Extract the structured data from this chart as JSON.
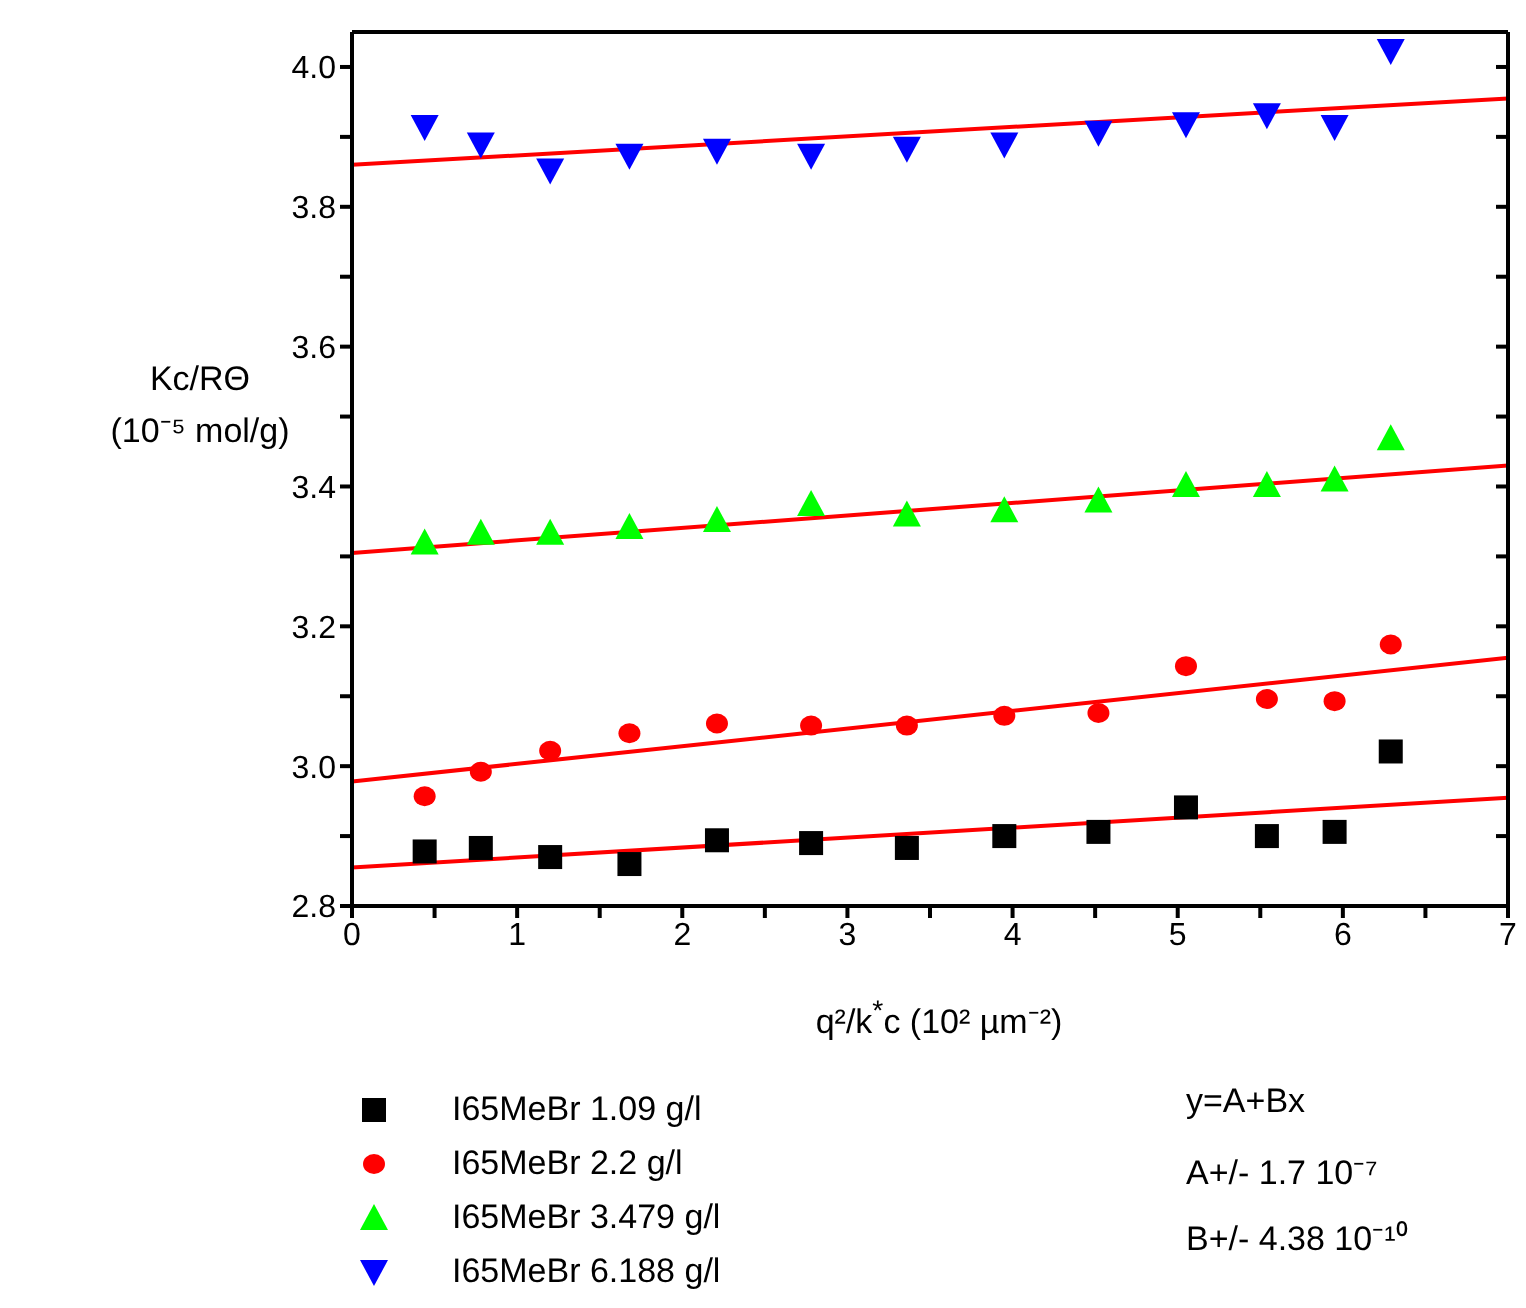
{
  "chart_data": {
    "type": "scatter",
    "xlabel": "q²/k$^{*}$c (10² µm⁻²)",
    "ylabel": "Kc/RΘ\n(10⁻⁵ mol/g)",
    "xlim": [
      0,
      7
    ],
    "ylim": [
      2.8,
      4.05
    ],
    "xticks": [
      0,
      {
        "value": 0.5,
        "label": null
      },
      1,
      {
        "value": 1.5,
        "label": null
      },
      2,
      {
        "value": 2.5,
        "label": null
      },
      3,
      {
        "value": 3.5,
        "label": null
      },
      4,
      {
        "value": 4.5,
        "label": null
      },
      5,
      {
        "value": 5.5,
        "label": null
      },
      6,
      {
        "value": 6.5,
        "label": null
      },
      7
    ],
    "yticks": [
      {
        "value": 2.8,
        "label": "2.8"
      },
      {
        "value": 2.9,
        "label": null
      },
      {
        "value": 3.0,
        "label": "3.0"
      },
      {
        "value": 3.1,
        "label": null
      },
      {
        "value": 3.2,
        "label": "3.2"
      },
      {
        "value": 3.3,
        "label": null
      },
      {
        "value": 3.4,
        "label": "3.4"
      },
      {
        "value": 3.5,
        "label": null
      },
      {
        "value": 3.6,
        "label": "3.6"
      },
      {
        "value": 3.7,
        "label": null
      },
      {
        "value": 3.8,
        "label": "3.8"
      },
      {
        "value": 3.9,
        "label": null
      },
      {
        "value": 4.0,
        "label": "4.0"
      }
    ],
    "grid": false,
    "legend": "bottom",
    "series": [
      {
        "name": "I65MeBr 1.09 g/l",
        "marker": "square",
        "color": "#000000",
        "x": [
          0.44,
          0.78,
          1.2,
          1.68,
          2.21,
          2.78,
          3.36,
          3.95,
          4.52,
          5.05,
          5.54,
          5.95,
          6.29
        ],
        "values": [
          2.878,
          2.883,
          2.87,
          2.86,
          2.894,
          2.89,
          2.883,
          2.9,
          2.906,
          2.941,
          2.9,
          2.906,
          3.021
        ]
      },
      {
        "name": "I65MeBr 2.2 g/l",
        "marker": "circle",
        "color": "#ff0000",
        "x": [
          0.44,
          0.78,
          1.2,
          1.68,
          2.21,
          2.78,
          3.36,
          3.95,
          4.52,
          5.05,
          5.54,
          5.95,
          6.29
        ],
        "values": [
          2.957,
          2.992,
          3.022,
          3.047,
          3.061,
          3.058,
          3.058,
          3.072,
          3.076,
          3.143,
          3.096,
          3.093,
          3.174
        ]
      },
      {
        "name": "I65MeBr 3.479 g/l",
        "marker": "triangle",
        "color": "#00ff00",
        "x": [
          0.44,
          0.78,
          1.2,
          1.68,
          2.21,
          2.78,
          3.36,
          3.95,
          4.52,
          5.05,
          5.54,
          5.95,
          6.29
        ],
        "values": [
          3.32,
          3.334,
          3.334,
          3.342,
          3.352,
          3.375,
          3.36,
          3.366,
          3.38,
          3.402,
          3.402,
          3.41,
          3.469
        ]
      },
      {
        "name": "I65MeBr 6.188 g/l",
        "marker": "triangle-down",
        "color": "#0000ff",
        "x": [
          0.44,
          0.78,
          1.2,
          1.68,
          2.21,
          2.78,
          3.36,
          3.95,
          4.52,
          5.05,
          5.54,
          5.95,
          6.29
        ],
        "values": [
          3.914,
          3.889,
          3.852,
          3.873,
          3.88,
          3.873,
          3.883,
          3.889,
          3.906,
          3.918,
          3.931,
          3.914,
          4.023
        ]
      },
      {
        "type": "line",
        "marker": "none",
        "color": "#ff0000",
        "x": [
          0,
          7
        ],
        "values": [
          2.855,
          2.955
        ]
      },
      {
        "type": "line",
        "marker": "none",
        "color": "#ff0000",
        "x": [
          0,
          7
        ],
        "values": [
          2.978,
          3.155
        ]
      },
      {
        "type": "line",
        "marker": "none",
        "color": "#ff0000",
        "x": [
          0,
          7
        ],
        "values": [
          3.305,
          3.43
        ]
      },
      {
        "type": "line",
        "marker": "none",
        "color": "#ff0000",
        "x": [
          0,
          7
        ],
        "values": [
          3.86,
          3.955
        ]
      }
    ],
    "annotations": [
      "y=A+Bx",
      "A+/- 1.7 10⁻⁷",
      "B+/- 4.38 10⁻¹⁰"
    ]
  }
}
